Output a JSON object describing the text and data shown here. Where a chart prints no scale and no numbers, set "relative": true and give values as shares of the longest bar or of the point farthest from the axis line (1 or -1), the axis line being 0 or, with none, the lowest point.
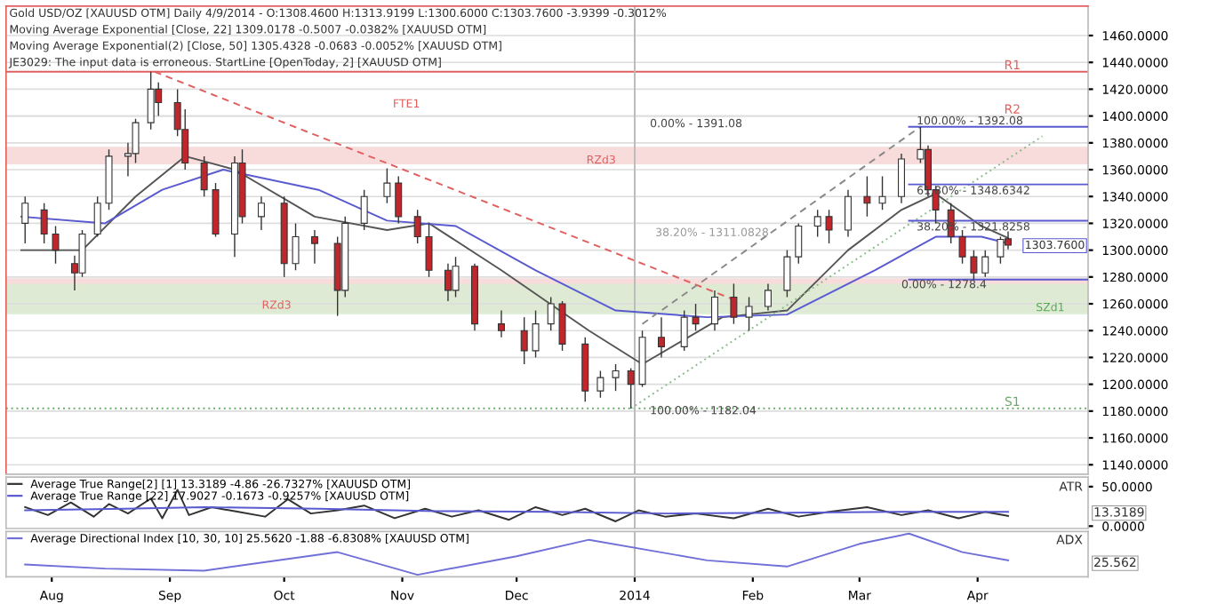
{
  "chart_data": [
    {
      "type": "candlestick",
      "title": "Gold USD/OZ [XAUUSD OTM] Daily 4/9/2014 - O:1308.4600 H:1313.9199 L:1300.6000 C:1303.7600 -3.9399 -0.3012%",
      "annotations": [
        "Moving Average Exponential [Close, 22] 1309.0178 -0.5007 -0.0382% [XAUUSD OTM]",
        "Moving Average Exponential(2) [Close, 50] 1305.4328 -0.0683 -0.0052% [XAUUSD OTM]",
        "JE3029: The input data is erroneous. StartLine [OpenToday, 2] [XAUUSD OTM]",
        "FTE1",
        "RZd3",
        "RZd3",
        "SZd1",
        "38.20% - 1311.0828",
        "1303.7600",
        {
          "text": "0.00% - 1391.08",
          "x": "2014-01-05",
          "y": 1394
        },
        {
          "text": "100.00% - 1182.04",
          "x": "2014-01-05",
          "y": 1180
        },
        {
          "text": "100.00% - 1392.08",
          "x": "2014-03-16",
          "y": 1396
        },
        {
          "text": "61.80% - 1348.6342",
          "x": "2014-03-16",
          "y": 1344
        },
        {
          "text": "38.20% - 1321.8258",
          "x": "2014-03-16",
          "y": 1317
        },
        {
          "text": "0.00% - 1278.4",
          "x": "2014-03-12",
          "y": 1274
        }
      ],
      "colors": [
        "#ffffff",
        "#c0272d",
        "#c0272d",
        "#c0272d",
        "#ffffff",
        "#ffffff",
        "#ffffff",
        "#ffffff",
        "#ffffff",
        "#ffffff",
        "#c0272d",
        "#c0272d",
        "#c0272d",
        "#c0272d",
        "#c0272d",
        "#ffffff",
        "#c0272d",
        "#ffffff",
        "#c0272d",
        "#ffffff",
        "#c0272d",
        "#c0272d",
        "#ffffff",
        "#ffffff",
        "#ffffff",
        "#c0272d",
        "#c0272d",
        "#c0272d",
        "#c0272d",
        "#ffffff",
        "#c0272d",
        "#c0272d",
        "#c0272d",
        "#ffffff",
        "#ffffff",
        "#c0272d",
        "#c0272d",
        "#ffffff",
        "#ffffff",
        "#c0272d",
        "#ffffff",
        "#c0272d",
        "#ffffff",
        "#c0272d",
        "#ffffff",
        "#c0272d",
        "#ffffff",
        "#ffffff",
        "#ffffff",
        "#ffffff",
        "#ffffff",
        "#c0272d",
        "#ffffff",
        "#c0272d",
        "#ffffff",
        "#ffffff",
        "#ffffff",
        "#c0272d",
        "#c0272d",
        "#c0272d",
        "#c0272d",
        "#c0272d",
        "#ffffff",
        "#ffffff",
        "#c0272d"
      ],
      "x": [
        "2013-07-25",
        "2013-07-30",
        "2013-08-02",
        "2013-08-07",
        "2013-08-09",
        "2013-08-13",
        "2013-08-16",
        "2013-08-21",
        "2013-08-23",
        "2013-08-27",
        "2013-08-29",
        "2013-09-03",
        "2013-09-05",
        "2013-09-10",
        "2013-09-13",
        "2013-09-18",
        "2013-09-20",
        "2013-09-25",
        "2013-10-01",
        "2013-10-04",
        "2013-10-09",
        "2013-10-15",
        "2013-10-17",
        "2013-10-22",
        "2013-10-28",
        "2013-10-31",
        "2013-11-05",
        "2013-11-08",
        "2013-11-13",
        "2013-11-15",
        "2013-11-20",
        "2013-11-27",
        "2013-12-03",
        "2013-12-06",
        "2013-12-10",
        "2013-12-13",
        "2013-12-19",
        "2013-12-23",
        "2013-12-27",
        "2013-12-31",
        "2014-01-03",
        "2014-01-08",
        "2014-01-14",
        "2014-01-17",
        "2014-01-22",
        "2014-01-27",
        "2014-01-31",
        "2014-02-05",
        "2014-02-10",
        "2014-02-13",
        "2014-02-18",
        "2014-02-21",
        "2014-02-26",
        "2014-03-03",
        "2014-03-07",
        "2014-03-12",
        "2014-03-17",
        "2014-03-19",
        "2014-03-21",
        "2014-03-25",
        "2014-03-28",
        "2014-03-31",
        "2014-04-03",
        "2014-04-07",
        "2014-04-09"
      ],
      "ohlc": [
        [
          1320,
          1340,
          1305,
          1335
        ],
        [
          1330,
          1335,
          1305,
          1312
        ],
        [
          1312,
          1318,
          1290,
          1300
        ],
        [
          1290,
          1296,
          1270,
          1283
        ],
        [
          1283,
          1315,
          1280,
          1312
        ],
        [
          1312,
          1340,
          1310,
          1335
        ],
        [
          1335,
          1375,
          1330,
          1370
        ],
        [
          1370,
          1380,
          1355,
          1372
        ],
        [
          1372,
          1398,
          1365,
          1395
        ],
        [
          1395,
          1433,
          1390,
          1420
        ],
        [
          1420,
          1425,
          1400,
          1410
        ],
        [
          1410,
          1420,
          1385,
          1390
        ],
        [
          1390,
          1405,
          1360,
          1365
        ],
        [
          1365,
          1370,
          1340,
          1345
        ],
        [
          1345,
          1350,
          1310,
          1312
        ],
        [
          1312,
          1370,
          1295,
          1365
        ],
        [
          1365,
          1375,
          1320,
          1325
        ],
        [
          1325,
          1340,
          1315,
          1335
        ],
        [
          1335,
          1340,
          1280,
          1290
        ],
        [
          1290,
          1320,
          1285,
          1310
        ],
        [
          1310,
          1315,
          1290,
          1305
        ],
        [
          1305,
          1310,
          1251,
          1270
        ],
        [
          1270,
          1325,
          1265,
          1320
        ],
        [
          1320,
          1345,
          1315,
          1340
        ],
        [
          1340,
          1361,
          1335,
          1350
        ],
        [
          1350,
          1355,
          1320,
          1325
        ],
        [
          1325,
          1330,
          1305,
          1310
        ],
        [
          1310,
          1320,
          1280,
          1285
        ],
        [
          1285,
          1290,
          1262,
          1270
        ],
        [
          1270,
          1295,
          1265,
          1288
        ],
        [
          1288,
          1290,
          1240,
          1245
        ],
        [
          1245,
          1255,
          1235,
          1240
        ],
        [
          1240,
          1250,
          1215,
          1225
        ],
        [
          1225,
          1255,
          1220,
          1245
        ],
        [
          1245,
          1265,
          1240,
          1260
        ],
        [
          1260,
          1262,
          1225,
          1230
        ],
        [
          1230,
          1235,
          1187,
          1195
        ],
        [
          1195,
          1210,
          1190,
          1205
        ],
        [
          1205,
          1215,
          1195,
          1210
        ],
        [
          1210,
          1212,
          1182,
          1200
        ],
        [
          1200,
          1240,
          1198,
          1235
        ],
        [
          1235,
          1250,
          1220,
          1228
        ],
        [
          1228,
          1255,
          1225,
          1250
        ],
        [
          1250,
          1260,
          1240,
          1245
        ],
        [
          1245,
          1270,
          1240,
          1265
        ],
        [
          1265,
          1275,
          1245,
          1250
        ],
        [
          1250,
          1265,
          1240,
          1258
        ],
        [
          1258,
          1275,
          1255,
          1270
        ],
        [
          1270,
          1300,
          1265,
          1295
        ],
        [
          1295,
          1320,
          1290,
          1318
        ],
        [
          1318,
          1330,
          1310,
          1325
        ],
        [
          1325,
          1330,
          1305,
          1315
        ],
        [
          1315,
          1345,
          1310,
          1340
        ],
        [
          1340,
          1355,
          1325,
          1335
        ],
        [
          1335,
          1355,
          1330,
          1340
        ],
        [
          1340,
          1372,
          1335,
          1368
        ],
        [
          1368,
          1392,
          1365,
          1375
        ],
        [
          1375,
          1378,
          1340,
          1345
        ],
        [
          1345,
          1348,
          1320,
          1330
        ],
        [
          1330,
          1335,
          1305,
          1310
        ],
        [
          1310,
          1315,
          1290,
          1295
        ],
        [
          1295,
          1300,
          1278,
          1283
        ],
        [
          1283,
          1300,
          1280,
          1295
        ],
        [
          1295,
          1310,
          1290,
          1308
        ],
        [
          1308.46,
          1313.92,
          1300.6,
          1303.76
        ]
      ],
      "series": [
        {
          "type": "line",
          "color": "#555555",
          "x": [
            "2013-07-24",
            "2013-08-09",
            "2013-08-23",
            "2013-09-05",
            "2013-09-18",
            "2013-10-09",
            "2013-10-28",
            "2013-11-08",
            "2013-11-27",
            "2013-12-20",
            "2014-01-03",
            "2014-01-24",
            "2014-02-10",
            "2014-02-26",
            "2014-03-12",
            "2014-03-21",
            "2014-04-02",
            "2014-04-09"
          ],
          "values": [
            1300,
            1300,
            1340,
            1370,
            1360,
            1325,
            1315,
            1320,
            1285,
            1240,
            1215,
            1250,
            1255,
            1300,
            1330,
            1342,
            1318,
            1309
          ]
        },
        {
          "type": "line",
          "color": "#5a5ad0",
          "x": [
            "2013-07-24",
            "2013-08-15",
            "2013-08-30",
            "2013-09-15",
            "2013-10-10",
            "2013-10-28",
            "2013-11-15",
            "2013-12-06",
            "2013-12-27",
            "2014-01-20",
            "2014-02-10",
            "2014-03-05",
            "2014-03-21",
            "2014-04-02",
            "2014-04-09"
          ],
          "values": [
            1325,
            1320,
            1345,
            1360,
            1345,
            1322,
            1318,
            1285,
            1255,
            1250,
            1252,
            1285,
            1310,
            1310,
            1305
          ]
        },
        {
          "type": "line",
          "color": "#e06060",
          "line_style": "dashed",
          "x": [
            "2013-08-28",
            "2014-01-28"
          ],
          "values": [
            1433,
            1262
          ]
        },
        {
          "type": "line",
          "color": "#888888",
          "line_style": "dashed",
          "x": [
            "2014-01-03",
            "2014-03-17"
          ],
          "values": [
            1245,
            1392
          ]
        },
        {
          "type": "line",
          "color": "#88bb88",
          "line_style": "dotted",
          "x": [
            "2013-12-31",
            "2014-04-18"
          ],
          "values": [
            1182,
            1385
          ]
        },
        {
          "type": "line",
          "color": "#5a5ad0",
          "x": [
            "2014-03-14",
            "2014-04-30"
          ],
          "values": [
            1392,
            1392
          ]
        },
        {
          "type": "line",
          "color": "#5a5ad0",
          "x": [
            "2014-03-14",
            "2014-04-30"
          ],
          "values": [
            1349,
            1349
          ]
        },
        {
          "type": "line",
          "color": "#5a5ad0",
          "x": [
            "2014-03-14",
            "2014-04-30"
          ],
          "values": [
            1322,
            1322
          ]
        },
        {
          "type": "line",
          "color": "#5a5ad0",
          "x": [
            "2014-03-14",
            "2014-04-30"
          ],
          "values": [
            1278,
            1278
          ]
        }
      ],
      "ref_lines": [
        {
          "axis": "y",
          "value": 1433,
          "label": "R1",
          "color": "#e06060"
        },
        {
          "axis": "y",
          "value": 1400,
          "label": "R2",
          "color": "#dddddd"
        },
        {
          "axis": "y",
          "value": 1182,
          "label": "S1",
          "color": "#66aa66",
          "line_style": "dotted"
        },
        {
          "axis": "x",
          "value": "2014-01-01",
          "color": "#bbbbbb"
        }
      ],
      "bands": [
        {
          "axis": "y",
          "from": 1253,
          "to": 1279,
          "color": "#f6d2d2"
        },
        {
          "axis": "y",
          "from": 1364,
          "to": 1377,
          "color": "#f6d2d2"
        },
        {
          "axis": "y",
          "from": 1252,
          "to": 1275,
          "color": "#d8edd2"
        }
      ],
      "xlim": [
        "2013-07-20",
        "2014-04-30"
      ],
      "ylim": [
        1133,
        1482
      ],
      "yticks": [
        {
          "value": 1140,
          "label": "1140.0000"
        },
        {
          "value": 1160,
          "label": "1160.0000"
        },
        {
          "value": 1180,
          "label": "1180.0000"
        },
        {
          "value": 1200,
          "label": "1200.0000"
        },
        {
          "value": 1220,
          "label": "1220.0000"
        },
        {
          "value": 1240,
          "label": "1240.0000"
        },
        {
          "value": 1260,
          "label": "1260.0000"
        },
        {
          "value": 1280,
          "label": "1280.0000"
        },
        {
          "value": 1300,
          "label": "1300.0000"
        },
        {
          "value": 1320,
          "label": "1320.0000"
        },
        {
          "value": 1340,
          "label": "1340.0000"
        },
        {
          "value": 1360,
          "label": "1360.0000"
        },
        {
          "value": 1380,
          "label": "1380.0000"
        },
        {
          "value": 1400,
          "label": "1400.0000"
        },
        {
          "value": 1420,
          "label": "1420.0000"
        },
        {
          "value": 1440,
          "label": "1440.0000"
        },
        {
          "value": 1460,
          "label": "1460.0000"
        }
      ],
      "grid": "y",
      "tick_labels": "y"
    },
    {
      "type": "line",
      "legend": "top left",
      "annotations": [
        "ATR",
        "13.3189"
      ],
      "series": [
        {
          "name": "Average True Range[2] [1] 13.3189 -4.86 -26.7327% [XAUUSD OTM]",
          "color": "#333333",
          "x": [
            "2013-07-25",
            "2013-07-31",
            "2013-08-06",
            "2013-08-12",
            "2013-08-16",
            "2013-08-21",
            "2013-08-27",
            "2013-08-30",
            "2013-09-03",
            "2013-09-06",
            "2013-09-12",
            "2013-09-19",
            "2013-09-26",
            "2013-10-02",
            "2013-10-08",
            "2013-10-15",
            "2013-10-22",
            "2013-10-30",
            "2013-11-07",
            "2013-11-14",
            "2013-11-21",
            "2013-11-29",
            "2013-12-06",
            "2013-12-13",
            "2013-12-19",
            "2013-12-27",
            "2014-01-02",
            "2014-01-09",
            "2014-01-17",
            "2014-01-27",
            "2014-02-05",
            "2014-02-13",
            "2014-02-21",
            "2014-03-03",
            "2014-03-12",
            "2014-03-19",
            "2014-03-27",
            "2014-04-03",
            "2014-04-09"
          ],
          "values": [
            24,
            14,
            30,
            12,
            28,
            16,
            35,
            10,
            46,
            14,
            24,
            18,
            12,
            34,
            16,
            20,
            26,
            10,
            22,
            12,
            20,
            8,
            24,
            14,
            22,
            6,
            20,
            12,
            16,
            10,
            22,
            12,
            18,
            24,
            14,
            20,
            10,
            18,
            13
          ]
        },
        {
          "name": "Average True Range [22] 17.9027 -0.1673 -0.9257% [XAUUSD OTM]",
          "color": "#5a5ad0",
          "x": [
            "2013-07-25",
            "2013-08-20",
            "2013-09-10",
            "2013-10-10",
            "2013-11-10",
            "2013-12-10",
            "2014-01-10",
            "2014-02-10",
            "2014-03-10",
            "2014-04-09"
          ],
          "values": [
            20,
            22,
            24,
            22,
            19,
            18,
            16,
            17,
            18,
            18
          ]
        }
      ],
      "xlim": [
        "2013-07-20",
        "2014-04-30"
      ],
      "ylim": [
        -3,
        62
      ],
      "yticks": [
        {
          "value": 0,
          "label": "0.0000"
        },
        {
          "value": 50,
          "label": "50.0000"
        }
      ],
      "ref_lines": [
        {
          "axis": "x",
          "value": "2014-01-01",
          "color": "#bbbbbb"
        }
      ],
      "tick_labels": "y"
    },
    {
      "type": "line",
      "relative": true,
      "legend": "top left",
      "annotations": [
        "ADX",
        "25.562"
      ],
      "series": [
        {
          "name": "Average Directional Index [10, 30, 10] 25.5620 -1.88 -6.8308% [XAUUSD OTM]",
          "color": "#7070d8",
          "x": [
            "2013-07-25",
            "2013-08-15",
            "2013-09-10",
            "2013-10-15",
            "2013-11-05",
            "2013-12-01",
            "2013-12-20",
            "2014-01-20",
            "2014-02-10",
            "2014-03-01",
            "2014-03-14",
            "2014-03-28",
            "2014-04-09"
          ],
          "values": [
            0.25,
            0.15,
            0.1,
            0.55,
            0.0,
            0.45,
            0.85,
            0.35,
            0.2,
            0.75,
            1.0,
            0.55,
            0.35
          ]
        }
      ],
      "xlim": [
        "2013-07-20",
        "2014-04-30"
      ],
      "xticks": [
        {
          "value": "2013-08-01",
          "label": "Aug"
        },
        {
          "value": "2013-09-01",
          "label": "Sep"
        },
        {
          "value": "2013-10-01",
          "label": "Oct"
        },
        {
          "value": "2013-11-01",
          "label": "Nov"
        },
        {
          "value": "2013-12-01",
          "label": "Dec"
        },
        {
          "value": "2014-01-01",
          "label": "2014"
        },
        {
          "value": "2014-02-01",
          "label": "Feb"
        },
        {
          "value": "2014-03-01",
          "label": "Mar"
        },
        {
          "value": "2014-04-01",
          "label": "Apr"
        }
      ],
      "ref_lines": [
        {
          "axis": "x",
          "value": "2014-01-01",
          "color": "#bbbbbb"
        }
      ],
      "tick_labels": "x"
    }
  ]
}
